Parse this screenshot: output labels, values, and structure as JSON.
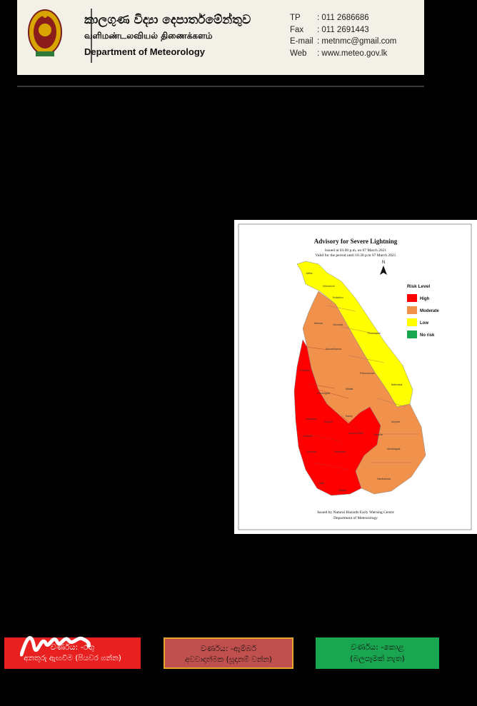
{
  "header": {
    "org_name_sinhala": "කාලගුණ විද්‍යා දෙපාර්තමේන්තුව",
    "org_name_tamil": "வளிமண்டலவியல் திணைக்களம்",
    "org_name_english": "Department of Meteorology",
    "contacts": [
      {
        "label": "TP",
        "value": ": 011 2686686"
      },
      {
        "label": "Fax",
        "value": ": 011 2691443"
      },
      {
        "label": "E-mail",
        "value": ": metnmc@gmail.com"
      },
      {
        "label": "Web",
        "value": ": www.meteo.gov.lk"
      }
    ]
  },
  "map": {
    "title": "Advisory for Severe Lightning",
    "issued": "Issued at 03.00 p.m. on 07 March 2021",
    "valid": "Valid for the period until 10.30 p.m 07 March 2021",
    "north": "N",
    "legend_title": "Risk Level",
    "legend": [
      {
        "label": "High",
        "color": "#ff0000"
      },
      {
        "label": "Moderate",
        "color": "#f0924b"
      },
      {
        "label": "Low",
        "color": "#ffff00"
      },
      {
        "label": "No risk",
        "color": "#1aa550"
      }
    ],
    "footer1": "Issued by Natural Hazards Early Warning Centre",
    "footer2": "Department of Meteorology",
    "districts": [
      "Jaffna",
      "Kilinochchi",
      "Mullaitivu",
      "Mannar",
      "Vavuniya",
      "Trincomalee",
      "Anuradhapura",
      "Puttalam",
      "Polonnaruwa",
      "Batticaloa",
      "Kurunegala",
      "Matale",
      "Ampara",
      "Gampaha",
      "Kegalle",
      "Kandy",
      "Badulla",
      "Colombo",
      "Nuwara Eliya",
      "Monaragala",
      "Kalutara",
      "Ratnapura",
      "Hambantota",
      "Galle",
      "Matara"
    ]
  },
  "boxes": {
    "red": {
      "line1": "වර්ණය: -රතු",
      "line2": "අනතුරු ඇඟවීම (පියවර ගන්න)"
    },
    "amber": {
      "line1": "වර්ණය: -ඇම්බර්",
      "line2": "අවවාදාත්මක (සූදානම් වන්න)"
    },
    "green": {
      "line1": "වර්ණය: -කොළ",
      "line2": "(බලපෑමක් නැත)"
    }
  }
}
